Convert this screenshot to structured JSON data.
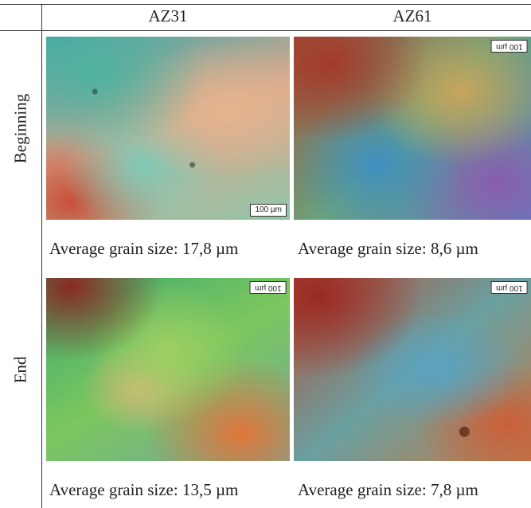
{
  "table": {
    "headers": [
      "AZ31",
      "AZ61"
    ],
    "rows": [
      {
        "label": "Beginning",
        "images": [
          {
            "scale_bar": "100 µm"
          },
          {
            "scale_bar": "100 µm"
          }
        ],
        "captions": [
          "Average grain size: 17,8 µm",
          "Average grain size: 8,6 µm"
        ]
      },
      {
        "label": "End",
        "images": [
          {
            "scale_bar": "100 µm"
          },
          {
            "scale_bar": "100 µm"
          }
        ],
        "captions": [
          "Average grain size: 13,5 µm",
          "Average grain size: 7,8 µm"
        ]
      }
    ]
  }
}
